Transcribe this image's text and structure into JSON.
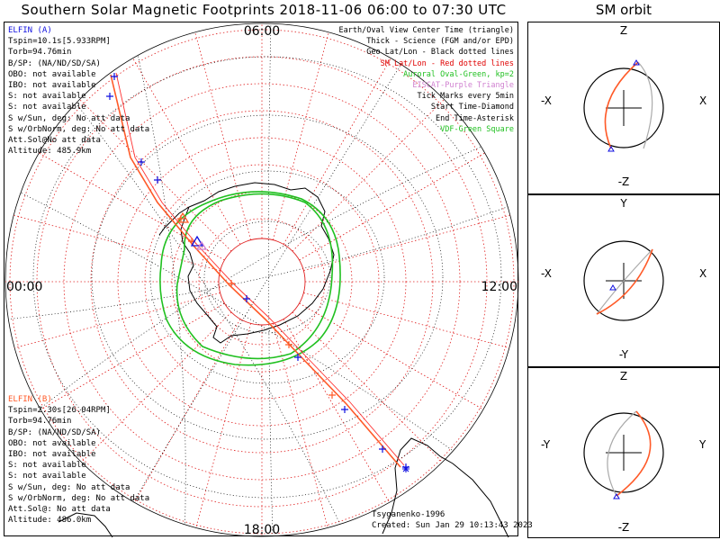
{
  "title": "Southern Solar Magnetic Footprints 2018-11-06 06:00 to 07:30 UTC",
  "orbit_title": "SM orbit",
  "map": {
    "time_labels": {
      "top": "06:00",
      "left": "00:00",
      "right": "12:00",
      "bottom": "18:00"
    }
  },
  "elfin_a": {
    "title": "ELFIN (A)",
    "color": "#1010e0",
    "lines": [
      "Tspin=10.1s[5.933RPM]",
      "Torb=94.76min",
      "B/SP: (NA/ND/SD/SA)",
      "OBO: not available",
      "IBO: not available",
      "S: not available",
      "S: not available",
      "S w/Sun, deg: No att data",
      "S w/OrbNorm, deg: No att data",
      "Att.Sol@No att data",
      "Altitude: 485.9km"
    ]
  },
  "elfin_b": {
    "title": "ELFIN (B)",
    "color": "#ff5a28",
    "lines": [
      "Tspin=2.30s[26.04RPM]",
      "Torb=94.76min",
      "B/SP: (NA/ND/SD/SA)",
      "OBO: not available",
      "IBO: not available",
      "S: not available",
      "S: not available",
      "S w/Sun, deg: No att data",
      "S w/OrbNorm, deg: No att data",
      "Att.Sol@: No att data",
      "Altitude: 486.0km"
    ]
  },
  "legend": [
    {
      "text": "Earth/Oval View Center Time (triangle)",
      "color": "#000000"
    },
    {
      "text": "Thick - Science (FGM and/or EPD)",
      "color": "#000000"
    },
    {
      "text": "Geo Lat/Lon - Black dotted lines",
      "color": "#000000"
    },
    {
      "text": "SM Lat/Lon - Red dotted lines",
      "color": "#e00000"
    },
    {
      "text": "Auroral Oval-Green, kp=2",
      "color": "#20c020"
    },
    {
      "text": "EISCAT-Purple Triangle",
      "color": "#d080d0"
    },
    {
      "text": "Tick Marks every 5min",
      "color": "#000000"
    },
    {
      "text": "Start Time-Diamond",
      "color": "#000000"
    },
    {
      "text": "End Time-Asterisk",
      "color": "#000000"
    },
    {
      "text": "VDF-Green Square",
      "color": "#20c020"
    }
  ],
  "credits": {
    "author": "Tsyganenko-1996",
    "created": "Created: Sun Jan 29 10:13:43 2023"
  },
  "orbit_panels": [
    {
      "top_label": "Z",
      "bottom_label": "-Z",
      "left_label": "-X",
      "right_label": "X"
    },
    {
      "top_label": "Y",
      "bottom_label": "-Y",
      "left_label": "-X",
      "right_label": "X"
    },
    {
      "top_label": "Z",
      "bottom_label": "-Z",
      "left_label": "-Y",
      "right_label": "Y"
    }
  ]
}
